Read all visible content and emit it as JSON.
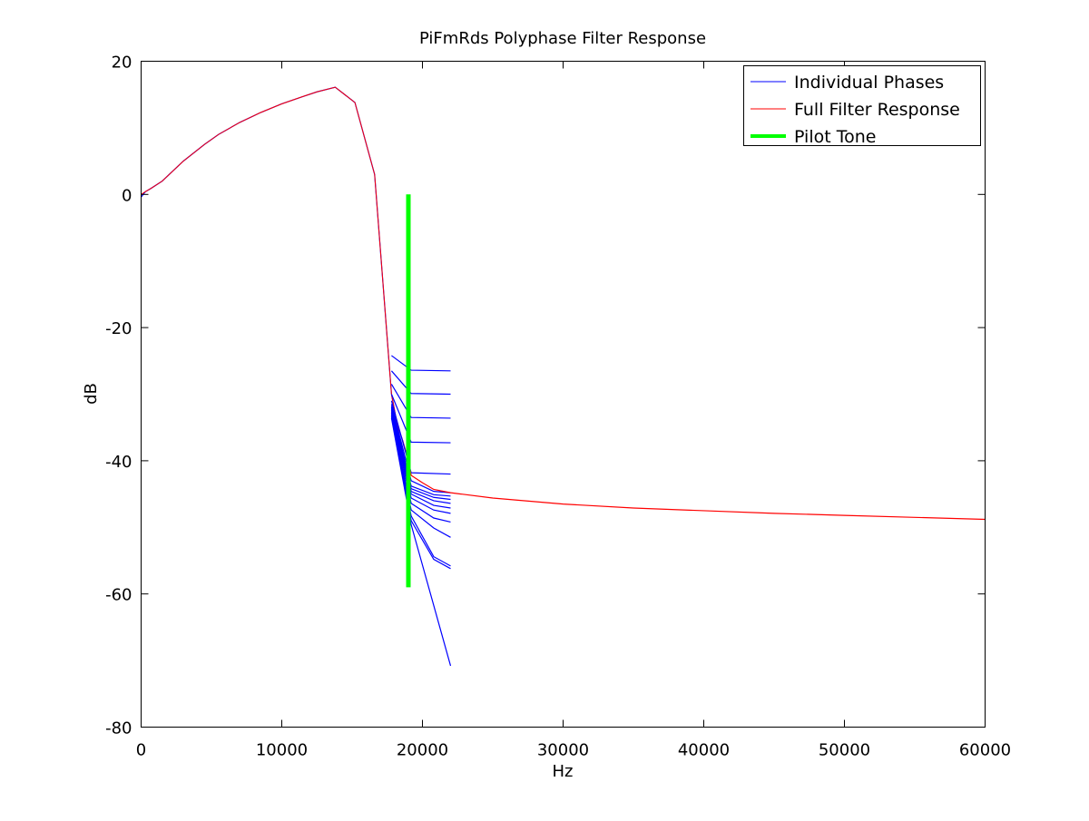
{
  "colors": {
    "phases": "#0000ff",
    "full_filter": "#ff0000",
    "pilot": "#00ff00",
    "axes": "#000000",
    "background": "#ffffff"
  },
  "chart_data": {
    "type": "line",
    "title": "PiFmRds Polyphase Filter Response",
    "xlabel": "Hz",
    "ylabel": "dB",
    "xlim": [
      0,
      60000
    ],
    "ylim": [
      -80,
      20
    ],
    "xticks": [
      0,
      10000,
      20000,
      30000,
      40000,
      50000,
      60000
    ],
    "yticks": [
      -80,
      -60,
      -40,
      -20,
      0,
      20
    ],
    "grid": false,
    "legend_position": "top-right",
    "legend": [
      {
        "label": "Individual Phases",
        "color": "#0000ff"
      },
      {
        "label": "Full Filter Response",
        "color": "#ff0000"
      },
      {
        "label": "Pilot Tone",
        "color": "#00ff00"
      }
    ],
    "passband_curve": {
      "x": [
        0,
        300,
        700,
        1500,
        3000,
        4500,
        5500,
        7000,
        8500,
        10000,
        11500,
        12500,
        13800,
        15200,
        16600,
        17800,
        18200,
        18600,
        19000
      ],
      "y": [
        0,
        0.4,
        0.9,
        2.0,
        5.0,
        7.5,
        9.0,
        10.8,
        12.3,
        13.6,
        14.7,
        15.4,
        16.1,
        13.8,
        3.0,
        -30.0,
        -34.5,
        -37.0,
        -40.0
      ]
    },
    "phase_series": [
      {
        "x": [
          17800,
          19200,
          22000
        ],
        "y": [
          -24.2,
          -26.4,
          -26.5
        ]
      },
      {
        "x": [
          17800,
          19200,
          22000
        ],
        "y": [
          -26.5,
          -29.9,
          -30.0
        ]
      },
      {
        "x": [
          17800,
          19200,
          22000
        ],
        "y": [
          -28.5,
          -33.5,
          -33.6
        ]
      },
      {
        "x": [
          17800,
          19200,
          22000
        ],
        "y": [
          -30.0,
          -37.2,
          -37.3
        ]
      },
      {
        "x": [
          17800,
          19200,
          22000
        ],
        "y": [
          -31.0,
          -41.8,
          -42.0
        ]
      },
      {
        "x": [
          17800,
          19200,
          20800,
          22000
        ],
        "y": [
          -31.5,
          -43.0,
          -44.6,
          -44.8
        ]
      },
      {
        "x": [
          17800,
          19200,
          20800,
          22000
        ],
        "y": [
          -31.8,
          -43.8,
          -45.1,
          -45.3
        ]
      },
      {
        "x": [
          17800,
          19200,
          20800,
          22000
        ],
        "y": [
          -32.0,
          -44.2,
          -45.5,
          -45.8
        ]
      },
      {
        "x": [
          17800,
          19200,
          20800,
          22000
        ],
        "y": [
          -32.2,
          -44.6,
          -46.0,
          -46.4
        ]
      },
      {
        "x": [
          17800,
          19200,
          20800,
          22000
        ],
        "y": [
          -32.4,
          -45.0,
          -46.7,
          -47.1
        ]
      },
      {
        "x": [
          17800,
          19200,
          20800,
          22000
        ],
        "y": [
          -32.6,
          -45.6,
          -47.4,
          -47.9
        ]
      },
      {
        "x": [
          17800,
          19200,
          20800,
          22000
        ],
        "y": [
          -32.8,
          -46.4,
          -48.6,
          -49.2
        ]
      },
      {
        "x": [
          17800,
          19200,
          20800,
          22000
        ],
        "y": [
          -33.0,
          -47.4,
          -50.1,
          -51.5
        ]
      },
      {
        "x": [
          17800,
          19200,
          20800,
          22000
        ],
        "y": [
          -33.2,
          -48.3,
          -54.4,
          -55.8
        ]
      },
      {
        "x": [
          17800,
          19200,
          20800,
          22000
        ],
        "y": [
          -33.4,
          -49.0,
          -54.8,
          -56.2
        ]
      },
      {
        "x": [
          17800,
          19200,
          22000
        ],
        "y": [
          -33.6,
          -49.6,
          -70.8
        ]
      }
    ],
    "full_filter_tail": {
      "x": [
        19000,
        19200,
        20000,
        20800,
        22000,
        25000,
        30000,
        35000,
        40000,
        45000,
        50000,
        55000,
        60000
      ],
      "y": [
        -40.0,
        -42.2,
        -43.3,
        -44.3,
        -44.8,
        -45.6,
        -46.5,
        -47.1,
        -47.5,
        -47.9,
        -48.2,
        -48.5,
        -48.8
      ]
    },
    "pilot_tone": {
      "x": 19000,
      "y_from": 0,
      "y_to": -59
    }
  }
}
